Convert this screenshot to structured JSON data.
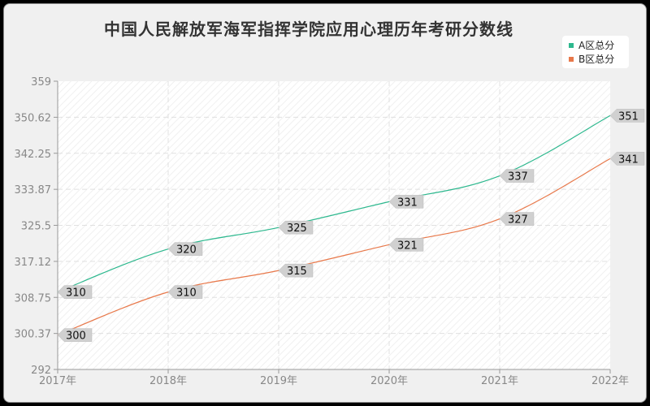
{
  "title": "中国人民解放军海军指挥学院应用心理历年考研分数线",
  "legend": [
    {
      "label": "A区总分",
      "color": "#2db88e"
    },
    {
      "label": "B区总分",
      "color": "#e8784a"
    }
  ],
  "chart_data": {
    "type": "line",
    "title": "中国人民解放军海军指挥学院应用心理历年考研分数线",
    "categories": [
      "2017年",
      "2018年",
      "2019年",
      "2020年",
      "2021年",
      "2022年"
    ],
    "series": [
      {
        "name": "A区总分",
        "color": "#2db88e",
        "values": [
          310,
          320,
          325,
          331,
          337,
          351
        ]
      },
      {
        "name": "B区总分",
        "color": "#e8784a",
        "values": [
          300,
          310,
          315,
          321,
          327,
          341
        ]
      }
    ],
    "xlabel": "",
    "ylabel": "",
    "ylim": [
      292,
      359
    ],
    "yticks": [
      "359",
      "350.62",
      "342.25",
      "333.87",
      "325.5",
      "317.12",
      "308.75",
      "300.37",
      "292"
    ],
    "grid": true,
    "legend_position": "top-right",
    "smooth": true
  }
}
